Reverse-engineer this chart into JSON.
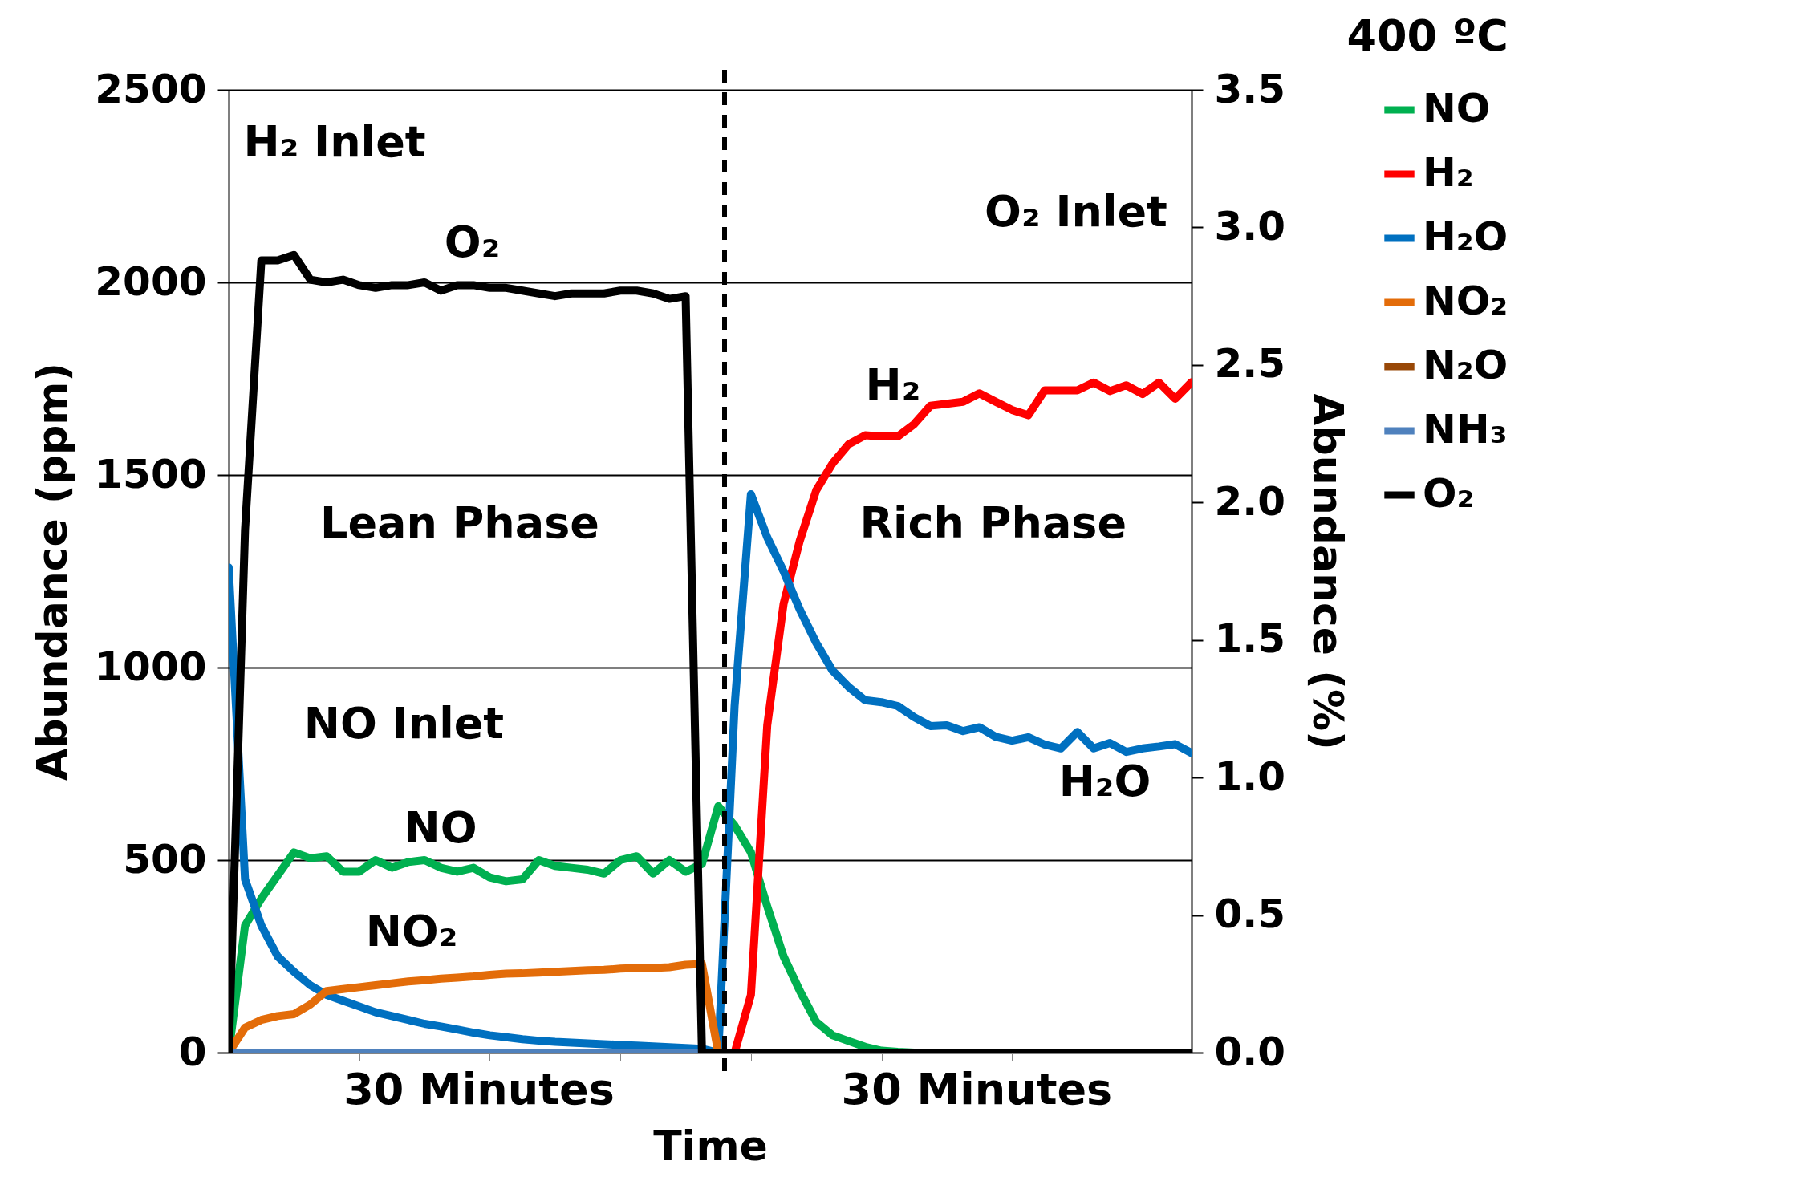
{
  "chart_data": {
    "type": "line",
    "title": "400 ºC",
    "xlabel": "Time",
    "ylabel": "Abundance (ppm)",
    "y2label": "Abundance (%)",
    "categories": [
      null,
      null,
      null,
      null,
      null,
      null,
      null,
      null,
      null,
      null,
      null,
      null,
      null,
      null,
      null,
      null,
      null,
      null,
      null,
      null,
      null,
      null,
      null,
      null,
      null,
      null,
      null,
      null,
      null,
      null,
      null,
      null,
      null,
      null,
      null,
      null,
      null,
      null,
      null,
      null,
      null,
      null,
      null,
      null,
      null,
      null,
      null,
      null,
      null,
      null,
      null,
      null,
      null,
      null,
      null,
      null,
      null,
      null,
      null,
      null
    ],
    "ylim": [
      0,
      2500
    ],
    "yticks": [
      0,
      500,
      1000,
      1500,
      2000,
      2500
    ],
    "y2lim": [
      0,
      3.5
    ],
    "y2ticks": [
      {
        "value": 0,
        "label": "0.0"
      },
      0.5,
      {
        "value": 1,
        "label": "1.0"
      },
      1.5,
      {
        "value": 2,
        "label": "2.0"
      },
      2.5,
      {
        "value": 3,
        "label": "3.0"
      },
      3.5
    ],
    "grid": "y",
    "legend": "right",
    "marker": "none",
    "line_style": "solid",
    "series": [
      {
        "name": "NO",
        "color": "#00b050",
        "values": [
          0,
          330,
          400,
          460,
          520,
          505,
          510,
          470,
          470,
          500,
          480,
          495,
          500,
          480,
          470,
          480,
          455,
          445,
          450,
          500,
          485,
          480,
          475,
          465,
          500,
          510,
          465,
          500,
          470,
          490,
          640,
          590,
          520,
          380,
          250,
          160,
          80,
          45,
          30,
          15,
          5,
          2,
          0,
          0,
          null,
          null,
          null,
          null,
          null,
          null,
          null,
          null,
          null,
          null,
          null,
          null,
          null,
          null,
          null,
          null
        ]
      },
      {
        "name": "H₂",
        "color": "#ff0000",
        "values": [
          null,
          null,
          null,
          null,
          null,
          null,
          null,
          null,
          null,
          null,
          null,
          null,
          null,
          null,
          null,
          null,
          null,
          null,
          null,
          null,
          null,
          null,
          null,
          null,
          null,
          null,
          null,
          null,
          null,
          null,
          null,
          0,
          150,
          850,
          1165,
          1330,
          1460,
          1530,
          1580,
          1603,
          1600,
          1600,
          1632,
          1680,
          1685,
          1690,
          1712,
          1690,
          1669,
          1655,
          1720,
          1720,
          1720,
          1740,
          1718,
          1733,
          1710,
          1740,
          1698,
          1741
        ]
      },
      {
        "name": "H₂O",
        "color": "#0070c0",
        "values": [
          1260,
          450,
          330,
          250,
          210,
          175,
          150,
          135,
          120,
          105,
          95,
          85,
          75,
          68,
          60,
          52,
          45,
          40,
          35,
          31,
          28,
          26,
          24,
          22,
          20,
          18,
          16,
          14,
          12,
          10,
          0,
          900,
          1450,
          1338,
          1250,
          1150,
          1064,
          992,
          949,
          915,
          910,
          900,
          871,
          848,
          850,
          835,
          845,
          820,
          810,
          819,
          800,
          790,
          833,
          790,
          804,
          781,
          790,
          795,
          801,
          778
        ]
      },
      {
        "name": "NO₂",
        "color": "#e36c09",
        "values": [
          0,
          65,
          85,
          95,
          100,
          125,
          160,
          165,
          170,
          175,
          180,
          185,
          188,
          192,
          195,
          198,
          202,
          205,
          206,
          208,
          210,
          212,
          214,
          215,
          218,
          220,
          220,
          222,
          228,
          230,
          0,
          null,
          null,
          null,
          null,
          null,
          null,
          null,
          null,
          null,
          null,
          null,
          null,
          null,
          null,
          null,
          null,
          null,
          null,
          null,
          null,
          null,
          null,
          null,
          null,
          null,
          null,
          null,
          null,
          null
        ]
      },
      {
        "name": "N₂O",
        "color": "#984807",
        "values": [
          null,
          null,
          null,
          null,
          null,
          null,
          null,
          null,
          null,
          null,
          null,
          null,
          null,
          null,
          null,
          null,
          null,
          null,
          null,
          null,
          null,
          null,
          null,
          null,
          null,
          null,
          null,
          null,
          null,
          null,
          null,
          null,
          null,
          null,
          null,
          null,
          null,
          null,
          null,
          null,
          null,
          null,
          null,
          null,
          null,
          null,
          null,
          null,
          null,
          null,
          null,
          null,
          null,
          null,
          null,
          null,
          null,
          null,
          null,
          null
        ]
      },
      {
        "name": "NH₃",
        "color": "#4f81bd",
        "values": [
          0,
          0,
          0,
          0,
          0,
          0,
          0,
          0,
          0,
          0,
          0,
          0,
          0,
          0,
          0,
          0,
          0,
          0,
          0,
          0,
          0,
          0,
          0,
          0,
          0,
          0,
          0,
          0,
          0,
          0,
          null,
          null,
          null,
          null,
          null,
          null,
          null,
          null,
          null,
          null,
          null,
          null,
          null,
          null,
          null,
          null,
          null,
          null,
          null,
          null,
          null,
          null,
          null,
          null,
          null,
          null,
          null,
          null,
          null,
          null
        ]
      },
      {
        "name": "O₂",
        "color": "#000000",
        "axis": "y2",
        "values": [
          0,
          1.9,
          2.88,
          2.88,
          2.9,
          2.81,
          2.8,
          2.81,
          2.79,
          2.78,
          2.79,
          2.79,
          2.8,
          2.77,
          2.79,
          2.79,
          2.78,
          2.78,
          2.77,
          2.76,
          2.75,
          2.76,
          2.76,
          2.76,
          2.77,
          2.77,
          2.76,
          2.74,
          2.75,
          0,
          0,
          0,
          0,
          0,
          0,
          0,
          0,
          0,
          0,
          0,
          0,
          0,
          0,
          0,
          0,
          0,
          0,
          0,
          0,
          0,
          0,
          0,
          0,
          0,
          0,
          0,
          0,
          0,
          0,
          0
        ]
      }
    ],
    "annotations": [
      "H₂ Inlet",
      "O₂ Inlet",
      "O₂",
      "Lean Phase",
      "Rich Phase",
      "H₂",
      "NO Inlet",
      "NO",
      "NO₂",
      "H₂O",
      "30 Minutes",
      "30 Minutes"
    ]
  }
}
